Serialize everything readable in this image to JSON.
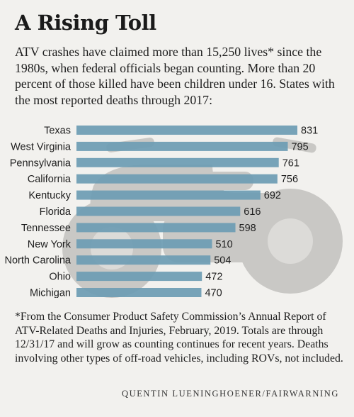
{
  "headline": "A Rising Toll",
  "intro": "ATV crashes have claimed more than 15,250 lives*  since the 1980s, when federal officials began counting. More than 20 percent of those killed have been children under 16. States with the most reported deaths through  2017:",
  "footnote": "*From the Consumer Product Safety Commission’s Annual Report of ATV-Related Deaths and Injuries, February, 2019. Totals are through 12/31/17 and will grow as counting continues for recent years. Deaths involving other types of off-road vehicles, including ROVs, not included.",
  "credit": "QUENTIN LUENINGHOENER/FAIRWARNING",
  "colors": {
    "bar": "#6d9cb3",
    "bar_alt": "#638ea5",
    "watermark": "#c9c8c5",
    "background": "#f2f1ee"
  },
  "background_icon": "atv-silhouette-icon",
  "chart_data": {
    "type": "bar",
    "orientation": "horizontal",
    "categories": [
      "Texas",
      "West Virginia",
      "Pennsylvania",
      "California",
      "Kentucky",
      "Florida",
      "Tennessee",
      "New York",
      "North Carolina",
      "Ohio",
      "Michigan"
    ],
    "values": [
      831,
      795,
      761,
      756,
      692,
      616,
      598,
      510,
      504,
      472,
      470
    ],
    "title": "",
    "xlabel": "",
    "ylabel": "",
    "xlim": [
      0,
      831
    ],
    "grid": false,
    "legend": "none",
    "data_labels": true
  }
}
